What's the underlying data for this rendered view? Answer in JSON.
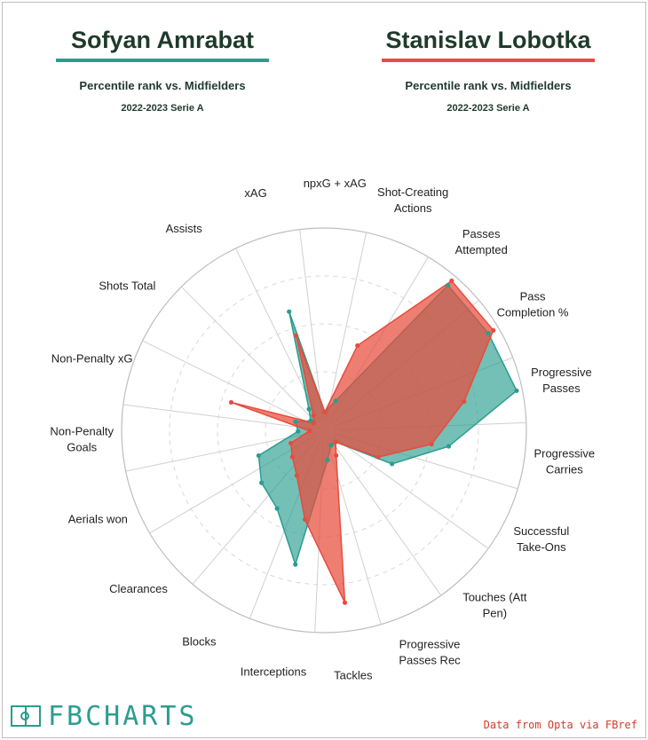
{
  "players": [
    {
      "name": "Sofyan Amrabat",
      "subtitle": "Percentile rank vs. Midfielders",
      "season": "2022-2023 Serie A",
      "color": "#2a9d8f"
    },
    {
      "name": "Stanislav Lobotka",
      "subtitle": "Percentile rank vs. Midfielders",
      "season": "2022-2023 Serie A",
      "color": "#e74c3c"
    }
  ],
  "footer": {
    "logo": "FBCHARTS",
    "credit": "Data from Opta via FBref"
  },
  "chart_data": {
    "type": "radar",
    "range": [
      0,
      100
    ],
    "categories": [
      "npxG + xAG",
      "Shot-Creating Actions",
      "Passes Attempted",
      "Pass Completion %",
      "Progressive Passes",
      "Progressive Carries",
      "Successful Take-Ons",
      "Touches (Att Pen)",
      "Progressive Passes Rec",
      "Tackles",
      "Interceptions",
      "Blocks",
      "Clearances",
      "Aerials won",
      "Non-Penalty Goals",
      "Non-Penalty xG",
      "Shots Total",
      "Assists",
      "xAG"
    ],
    "category_labels": [
      [
        "npxG + xAG"
      ],
      [
        "Shot-Creating",
        "Actions"
      ],
      [
        "Passes",
        "Attempted"
      ],
      [
        "Pass",
        "Completion %"
      ],
      [
        "Progressive",
        "Passes"
      ],
      [
        "Progressive",
        "Carries"
      ],
      [
        "Successful",
        "Take-Ons"
      ],
      [
        "Touches (Att",
        "Pen)"
      ],
      [
        "Progressive",
        "Passes Rec"
      ],
      [
        "Tackles"
      ],
      [
        "Interceptions"
      ],
      [
        "Blocks"
      ],
      [
        "Clearances"
      ],
      [
        "Aerials won"
      ],
      [
        "Non-Penalty",
        "Goals"
      ],
      [
        "Non-Penalty xG"
      ],
      [
        "Shots Total"
      ],
      [
        "Assists"
      ],
      [
        "xAG"
      ]
    ],
    "series": [
      {
        "name": "Sofyan Amrabat",
        "color": "#2a9d8f",
        "values": [
          4,
          11,
          94,
          94,
          97,
          60,
          34,
          3,
          3,
          10,
          66,
          42,
          37,
          31,
          8,
          10,
          3,
          8,
          59
        ]
      },
      {
        "name": "Stanislav Lobotka",
        "color": "#e74c3c",
        "values": [
          4,
          42,
          97,
          97,
          69,
          51,
          26,
          3,
          9,
          85,
          42,
          22,
          16,
          13,
          2,
          45,
          1,
          4,
          46
        ]
      }
    ]
  }
}
